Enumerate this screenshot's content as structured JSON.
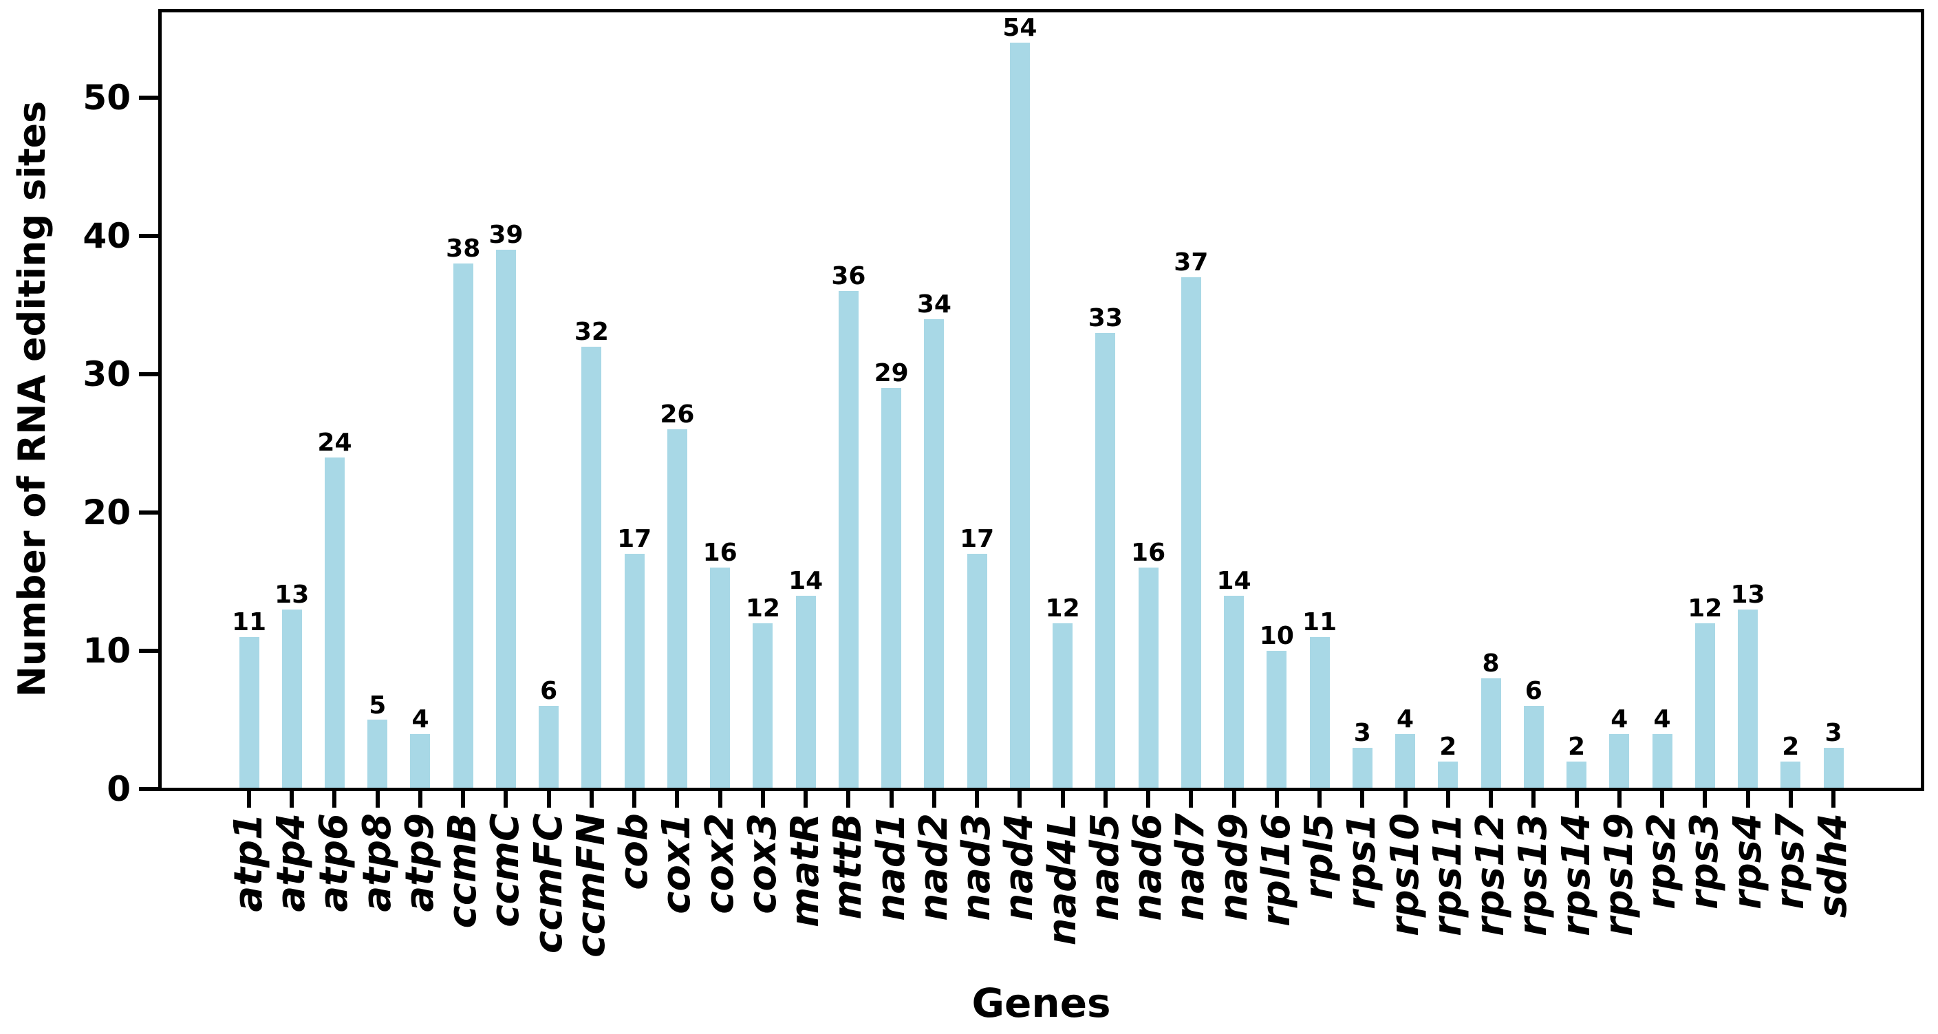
{
  "styles": {
    "background": "#ffffff",
    "bar_color": "#A8D8E6",
    "axis_color": "#000000",
    "text_color": "#000000"
  },
  "chart_data": {
    "type": "bar",
    "title": "",
    "xlabel": "Genes",
    "ylabel": "Number of RNA editing sites",
    "categories": [
      "atp1",
      "atp4",
      "atp6",
      "atp8",
      "atp9",
      "ccmB",
      "ccmC",
      "ccmFC",
      "ccmFN",
      "cob",
      "cox1",
      "cox2",
      "cox3",
      "matR",
      "mttB",
      "nad1",
      "nad2",
      "nad3",
      "nad4",
      "nad4L",
      "nad5",
      "nad6",
      "nad7",
      "nad9",
      "rpl16",
      "rpl5",
      "rps1",
      "rps10",
      "rps11",
      "rps12",
      "rps13",
      "rps14",
      "rps19",
      "rps2",
      "rps3",
      "rps4",
      "rps7",
      "sdh4"
    ],
    "values": [
      11,
      13,
      24,
      5,
      4,
      38,
      39,
      6,
      32,
      17,
      26,
      16,
      12,
      14,
      36,
      29,
      34,
      17,
      54,
      12,
      33,
      16,
      37,
      14,
      10,
      11,
      3,
      4,
      2,
      8,
      6,
      2,
      4,
      4,
      12,
      13,
      2,
      3
    ],
    "value_labels_shown": true,
    "yticks": [
      0,
      10,
      20,
      30,
      40,
      50
    ],
    "ylim": [
      0,
      56.4
    ],
    "grid": false,
    "legend": null,
    "bar_color": "#A8D8E6"
  }
}
